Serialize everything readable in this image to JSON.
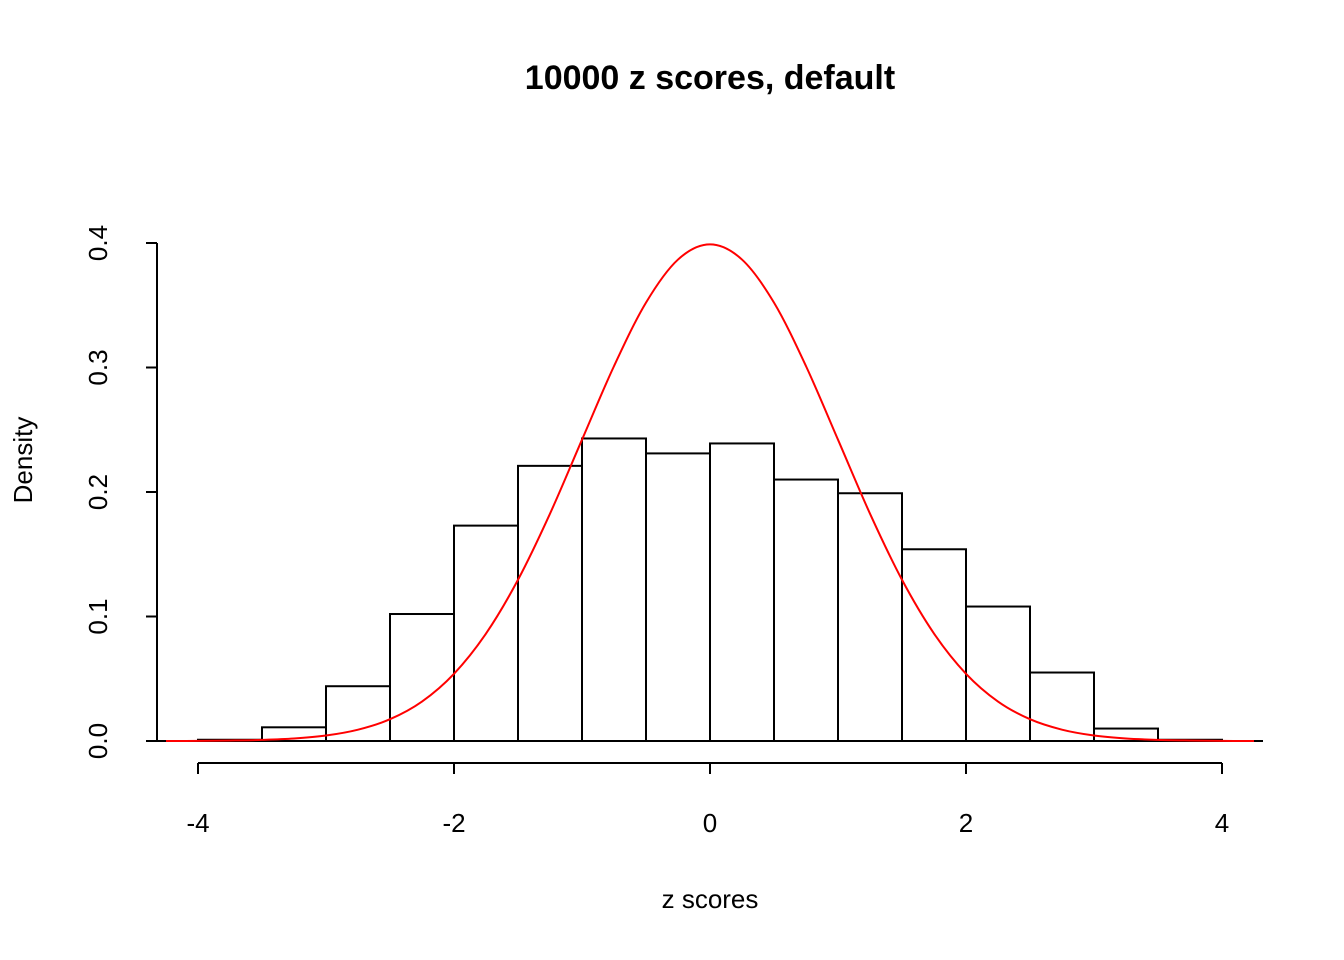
{
  "chart_data": {
    "type": "histogram",
    "title": "10000 z scores, default",
    "x_label": "z scores",
    "y_label": "Density",
    "bins": [
      -4,
      -3.5,
      -3,
      -2.5,
      -2,
      -1.5,
      -1,
      -0.5,
      0,
      0.5,
      1,
      1.5,
      2,
      2.5,
      3,
      3.5,
      4
    ],
    "values": [
      0.001,
      0.011,
      0.044,
      0.102,
      0.173,
      0.221,
      0.243,
      0.231,
      0.239,
      0.21,
      0.199,
      0.154,
      0.108,
      0.055,
      0.01,
      0.001
    ],
    "color": "#ffffff",
    "curve": {
      "color": "#ff0000",
      "x": [
        -4.25,
        -4,
        -3.75,
        -3.5,
        -3.25,
        -3,
        -2.75,
        -2.5,
        -2.25,
        -2,
        -1.75,
        -1.5,
        -1.25,
        -1,
        -0.75,
        -0.5,
        -0.25,
        0,
        0.25,
        0.5,
        0.75,
        1,
        1.25,
        1.5,
        1.75,
        2,
        2.25,
        2.5,
        2.75,
        3,
        3.25,
        3.5,
        3.75,
        4,
        4.25
      ],
      "values": [
        0.0,
        0.0001,
        0.0004,
        0.0009,
        0.002,
        0.0044,
        0.0091,
        0.0175,
        0.0317,
        0.054,
        0.0863,
        0.1295,
        0.1826,
        0.242,
        0.3011,
        0.3521,
        0.3867,
        0.3989,
        0.3867,
        0.3521,
        0.3011,
        0.242,
        0.1826,
        0.1295,
        0.0863,
        0.054,
        0.0317,
        0.0175,
        0.0091,
        0.0044,
        0.002,
        0.0009,
        0.0004,
        0.0001,
        0.0
      ]
    },
    "xlim": [
      -4,
      4
    ],
    "ylim": [
      0,
      0.4
    ],
    "xticks": [
      -4,
      -2,
      0,
      2,
      4
    ],
    "yticks": [
      {
        "value": 0,
        "label": "0.0"
      },
      0.1,
      0.2,
      0.3,
      0.4
    ]
  }
}
